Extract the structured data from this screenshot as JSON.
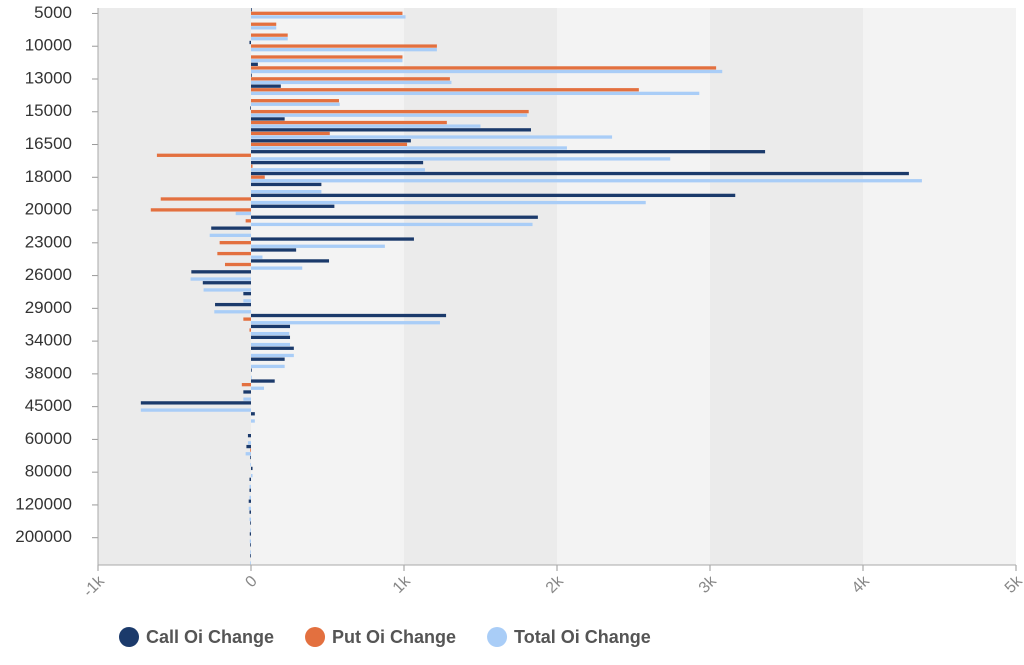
{
  "chart_data": {
    "type": "hbar",
    "categories": [
      "5000",
      null,
      null,
      "10000",
      null,
      null,
      "13000",
      null,
      null,
      "15000",
      null,
      null,
      "16500",
      null,
      null,
      "18000",
      null,
      null,
      "20000",
      null,
      null,
      "23000",
      null,
      null,
      "26000",
      null,
      null,
      "29000",
      null,
      null,
      "34000",
      null,
      null,
      "38000",
      null,
      null,
      "45000",
      null,
      null,
      "60000",
      null,
      null,
      "80000",
      null,
      null,
      "120000",
      null,
      null,
      "200000",
      null,
      null
    ],
    "series": [
      {
        "name": "Call Oi Change",
        "color": "#1b3a6b",
        "values": [
          5,
          0,
          0,
          -10,
          0,
          45,
          5,
          195,
          0,
          -5,
          220,
          1830,
          1045,
          3360,
          1125,
          4300,
          460,
          3165,
          545,
          1875,
          -260,
          1065,
          295,
          510,
          -390,
          -315,
          -50,
          -235,
          1275,
          255,
          255,
          280,
          220,
          5,
          155,
          -50,
          -720,
          25,
          0,
          -20,
          -30,
          -5,
          10,
          -10,
          -10,
          -15,
          -10,
          -5,
          -8,
          -5,
          -5
        ]
      },
      {
        "name": "Put Oi Change",
        "color": "#e3703f",
        "values": [
          990,
          165,
          240,
          1215,
          990,
          3040,
          1300,
          2535,
          575,
          1815,
          1280,
          515,
          1020,
          -615,
          10,
          90,
          0,
          -590,
          -655,
          -35,
          0,
          -205,
          -220,
          -170,
          0,
          0,
          0,
          0,
          -50,
          -10,
          0,
          0,
          0,
          0,
          -60,
          0,
          0,
          0,
          0,
          0,
          -5,
          0,
          0,
          0,
          0,
          0,
          0,
          0,
          0,
          0,
          0
        ]
      },
      {
        "name": "Total Oi Change",
        "color": "#a9cdf7",
        "values": [
          1010,
          165,
          240,
          1215,
          990,
          3080,
          1310,
          2930,
          580,
          1805,
          1500,
          2360,
          2065,
          2740,
          1137,
          4385,
          460,
          2580,
          -100,
          1840,
          -270,
          875,
          75,
          335,
          -395,
          -310,
          -50,
          -240,
          1235,
          250,
          255,
          280,
          220,
          5,
          85,
          -50,
          -720,
          25,
          0,
          -20,
          -35,
          -5,
          10,
          -10,
          -10,
          -15,
          -10,
          -5,
          -8,
          -5,
          -5
        ]
      }
    ],
    "xlim": [
      -1000,
      5000
    ],
    "xticks": [
      {
        "value": -1000,
        "label": "-1k"
      },
      0,
      {
        "value": 1000,
        "label": "1k"
      },
      {
        "value": 2000,
        "label": "2k"
      },
      {
        "value": 3000,
        "label": "3k"
      },
      {
        "value": 4000,
        "label": "4k"
      },
      {
        "value": 5000,
        "label": "5k"
      }
    ],
    "legend": "bottom"
  }
}
